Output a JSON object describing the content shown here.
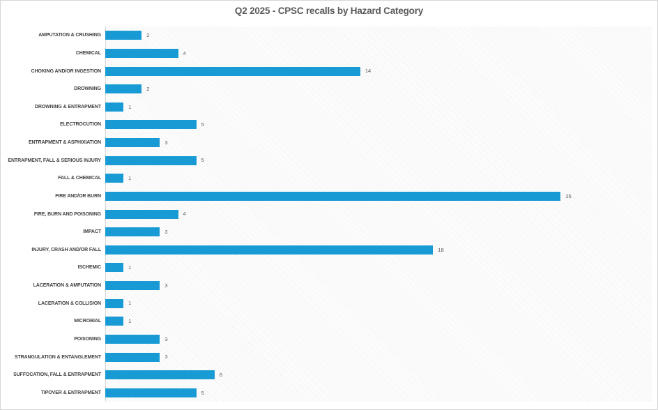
{
  "window": {
    "background": "#ffffff",
    "border_color": "#d6d6d6"
  },
  "chart_data": {
    "type": "bar",
    "orientation": "horizontal",
    "title": "Q2 2025 - CPSC recalls by Hazard Category",
    "categories": [
      "AMPUTATION & CRUSHING",
      "CHEMICAL",
      "CHOKING AND/OR INGESTION",
      "DROWNING",
      "DROWNING & ENTRAPMENT",
      "ELECTROCUTION",
      "ENTRAPMENT & ASPHIXIATION",
      "ENTRAPMENT, FALL & SERIOUS INJURY",
      "FALL & CHEMICAL",
      "FIRE AND/OR BURN",
      "FIRE, BURN AND POISONING",
      "IMPACT",
      "INJURY, CRASH AND/OR FALL",
      "ISCHEMIC",
      "LACERATION & AMPUTATION",
      "LACERATION & COLLISION",
      "MICROBIAL",
      "POISONING",
      "STRANGULATION & ENTANGLEMENT",
      "SUFFOCATION, FALL & ENTRAPMENT",
      "TIPOVER & ENTRAPMENT"
    ],
    "values": [
      2,
      4,
      14,
      2,
      1,
      5,
      3,
      5,
      1,
      25,
      4,
      3,
      18,
      1,
      3,
      1,
      1,
      3,
      3,
      6,
      5
    ],
    "xlabel": "",
    "ylabel": "",
    "xlim": [
      0,
      30
    ],
    "grid": false,
    "legend": "none",
    "data_labels": true,
    "bar_color": "#189bd5",
    "title_color": "#595959",
    "category_label_color": "#404040",
    "value_label_color": "#595959",
    "axis_line_color": "#d9d9d9",
    "plot_background": "white-diagonal-hatch",
    "hatch_color": "#f0f0f0"
  }
}
